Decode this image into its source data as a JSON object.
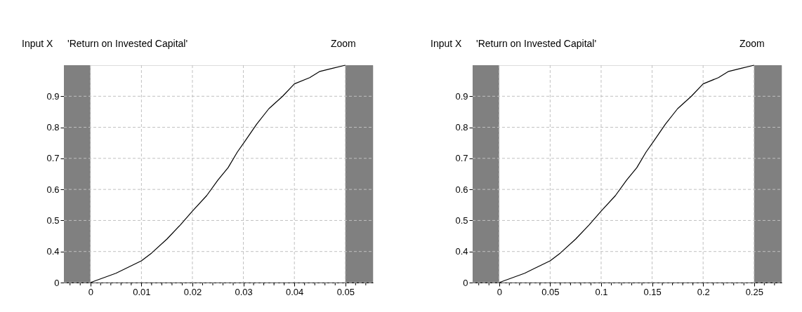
{
  "chart_data": [
    {
      "type": "line",
      "title": "'Return on Invested Capital'",
      "annotations": [
        "Input X",
        "Zoom"
      ],
      "x": [
        0,
        0.005,
        0.01,
        0.012,
        0.015,
        0.0176,
        0.02,
        0.0228,
        0.025,
        0.027,
        0.0288,
        0.0305,
        0.0326,
        0.035,
        0.0377,
        0.04,
        0.043,
        0.045,
        0.0475,
        0.05
      ],
      "series": [
        {
          "color": "#000000",
          "values": [
            0.3,
            0.33,
            0.37,
            0.395,
            0.44,
            0.485,
            0.53,
            0.58,
            0.63,
            0.67,
            0.72,
            0.76,
            0.81,
            0.86,
            0.9,
            0.94,
            0.96,
            0.98,
            0.99,
            1.0
          ]
        }
      ],
      "xlim": [
        -0.0052,
        0.0554
      ],
      "xticks": [
        {
          "value": -0.004,
          "label": null
        },
        {
          "value": -0.002,
          "label": null
        },
        0,
        {
          "value": 0.002,
          "label": null
        },
        {
          "value": 0.004,
          "label": null
        },
        {
          "value": 0.006,
          "label": null
        },
        {
          "value": 0.008,
          "label": null
        },
        0.01,
        {
          "value": 0.012,
          "label": null
        },
        {
          "value": 0.014,
          "label": null
        },
        {
          "value": 0.016,
          "label": null
        },
        {
          "value": 0.018,
          "label": null
        },
        0.02,
        {
          "value": 0.022,
          "label": null
        },
        {
          "value": 0.024,
          "label": null
        },
        {
          "value": 0.026,
          "label": null
        },
        {
          "value": 0.028,
          "label": null
        },
        0.03,
        {
          "value": 0.032,
          "label": null
        },
        {
          "value": 0.034,
          "label": null
        },
        {
          "value": 0.036,
          "label": null
        },
        {
          "value": 0.038,
          "label": null
        },
        0.04,
        {
          "value": 0.042,
          "label": null
        },
        {
          "value": 0.044,
          "label": null
        },
        {
          "value": 0.046,
          "label": null
        },
        {
          "value": 0.048,
          "label": null
        },
        0.05,
        {
          "value": 0.052,
          "label": null
        },
        {
          "value": 0.054,
          "label": null
        }
      ],
      "ylim": [
        0.3,
        1.0
      ],
      "yticks": [
        {
          "value": 0.3,
          "label": "0"
        },
        0.4,
        0.5,
        0.6,
        0.7,
        0.8,
        0.9
      ],
      "grid": true,
      "bands": [
        {
          "axis": "x",
          "from": -0.0052,
          "to": 0,
          "color": "#808080"
        },
        {
          "axis": "x",
          "from": 0.05,
          "to": 0.0554,
          "color": "#808080"
        }
      ]
    },
    {
      "type": "line",
      "title": "'Return on Invested Capital'",
      "annotations": [
        "Input X",
        "Zoom"
      ],
      "x": [
        0,
        0.025,
        0.05,
        0.06,
        0.075,
        0.088,
        0.1,
        0.114,
        0.125,
        0.135,
        0.144,
        0.1525,
        0.163,
        0.175,
        0.1885,
        0.2,
        0.215,
        0.225,
        0.2375,
        0.25
      ],
      "series": [
        {
          "color": "#000000",
          "values": [
            0.3,
            0.33,
            0.37,
            0.395,
            0.44,
            0.485,
            0.53,
            0.58,
            0.63,
            0.67,
            0.72,
            0.76,
            0.81,
            0.86,
            0.9,
            0.94,
            0.96,
            0.98,
            0.99,
            1.0
          ]
        }
      ],
      "xlim": [
        -0.026,
        0.277
      ],
      "xticks": [
        {
          "value": -0.02,
          "label": null
        },
        {
          "value": -0.01,
          "label": null
        },
        0,
        {
          "value": 0.01,
          "label": null
        },
        {
          "value": 0.02,
          "label": null
        },
        {
          "value": 0.03,
          "label": null
        },
        {
          "value": 0.04,
          "label": null
        },
        0.05,
        {
          "value": 0.06,
          "label": null
        },
        {
          "value": 0.07,
          "label": null
        },
        {
          "value": 0.08,
          "label": null
        },
        {
          "value": 0.09,
          "label": null
        },
        0.1,
        {
          "value": 0.11,
          "label": null
        },
        {
          "value": 0.12,
          "label": null
        },
        {
          "value": 0.13,
          "label": null
        },
        {
          "value": 0.14,
          "label": null
        },
        0.15,
        {
          "value": 0.16,
          "label": null
        },
        {
          "value": 0.17,
          "label": null
        },
        {
          "value": 0.18,
          "label": null
        },
        {
          "value": 0.19,
          "label": null
        },
        0.2,
        {
          "value": 0.21,
          "label": null
        },
        {
          "value": 0.22,
          "label": null
        },
        {
          "value": 0.23,
          "label": null
        },
        {
          "value": 0.24,
          "label": null
        },
        0.25,
        {
          "value": 0.26,
          "label": null
        },
        {
          "value": 0.27,
          "label": null
        }
      ],
      "ylim": [
        0.3,
        1.0
      ],
      "yticks": [
        {
          "value": 0.3,
          "label": "0"
        },
        0.4,
        0.5,
        0.6,
        0.7,
        0.8,
        0.9
      ],
      "grid": true,
      "bands": [
        {
          "axis": "x",
          "from": -0.026,
          "to": 0,
          "color": "#808080"
        },
        {
          "axis": "x",
          "from": 0.25,
          "to": 0.277,
          "color": "#808080"
        }
      ]
    }
  ]
}
